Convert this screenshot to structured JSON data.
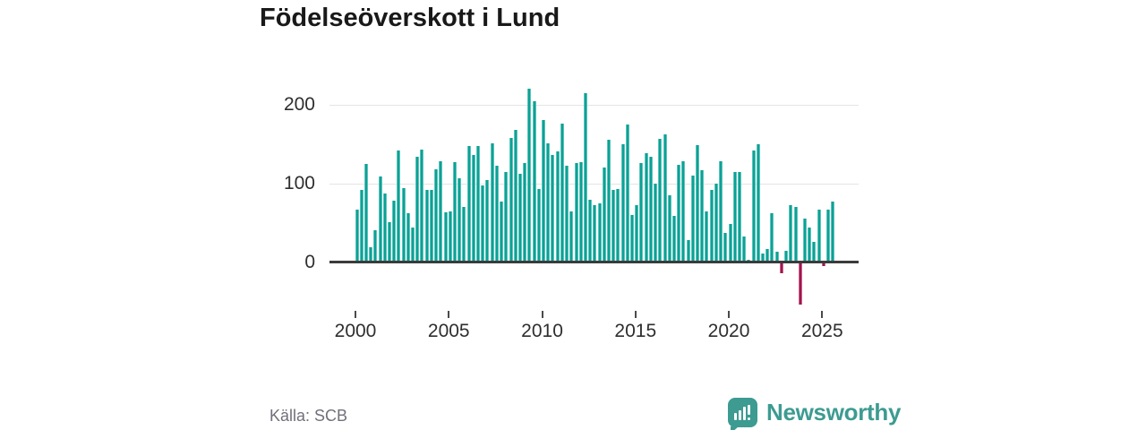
{
  "header": {
    "title": "Födelseöverskott i Lund"
  },
  "footer": {
    "source": "Källa: SCB",
    "brand": "Newsworthy"
  },
  "colors": {
    "bar_positive": "#0aa296",
    "bar_negative": "#a3134e",
    "brand_teal": "#3d9b91",
    "gridline": "#e4e4e4",
    "axis_line": "#3b3b3b",
    "axis_text": "#2e2e2e",
    "title_text": "#191919",
    "source_text": "#70707a",
    "background": "#ffffff"
  },
  "chart_data": {
    "type": "bar",
    "title": "Födelseöverskott i Lund",
    "frequency": "quarterly",
    "start_year": 2000,
    "start_quarter": 1,
    "values": [
      66,
      92,
      124,
      19,
      40,
      109,
      87,
      51,
      78,
      141,
      94,
      62,
      44,
      134,
      143,
      92,
      92,
      118,
      128,
      63,
      64,
      127,
      106,
      70,
      147,
      136,
      147,
      97,
      104,
      151,
      122,
      77,
      114,
      157,
      168,
      112,
      126,
      220,
      204,
      93,
      180,
      151,
      136,
      140,
      176,
      122,
      64,
      126,
      127,
      214,
      79,
      72,
      74,
      120,
      155,
      91,
      93,
      149,
      174,
      60,
      72,
      126,
      138,
      133,
      100,
      156,
      162,
      85,
      59,
      123,
      128,
      28,
      110,
      148,
      116,
      64,
      91,
      100,
      128,
      37,
      48,
      114,
      114,
      32,
      3,
      141,
      149,
      11,
      17,
      62,
      13,
      -12,
      14,
      72,
      70,
      -52,
      55,
      44,
      26,
      67,
      -3,
      66,
      77
    ],
    "x_ticks": [
      "2000",
      "2005",
      "2010",
      "2015",
      "2020",
      "2025"
    ],
    "y_ticks": [
      0,
      100,
      200
    ],
    "ylim": [
      -60,
      230
    ],
    "xlabel": "",
    "ylabel": "",
    "grid": "horizontal",
    "legend": "none"
  }
}
